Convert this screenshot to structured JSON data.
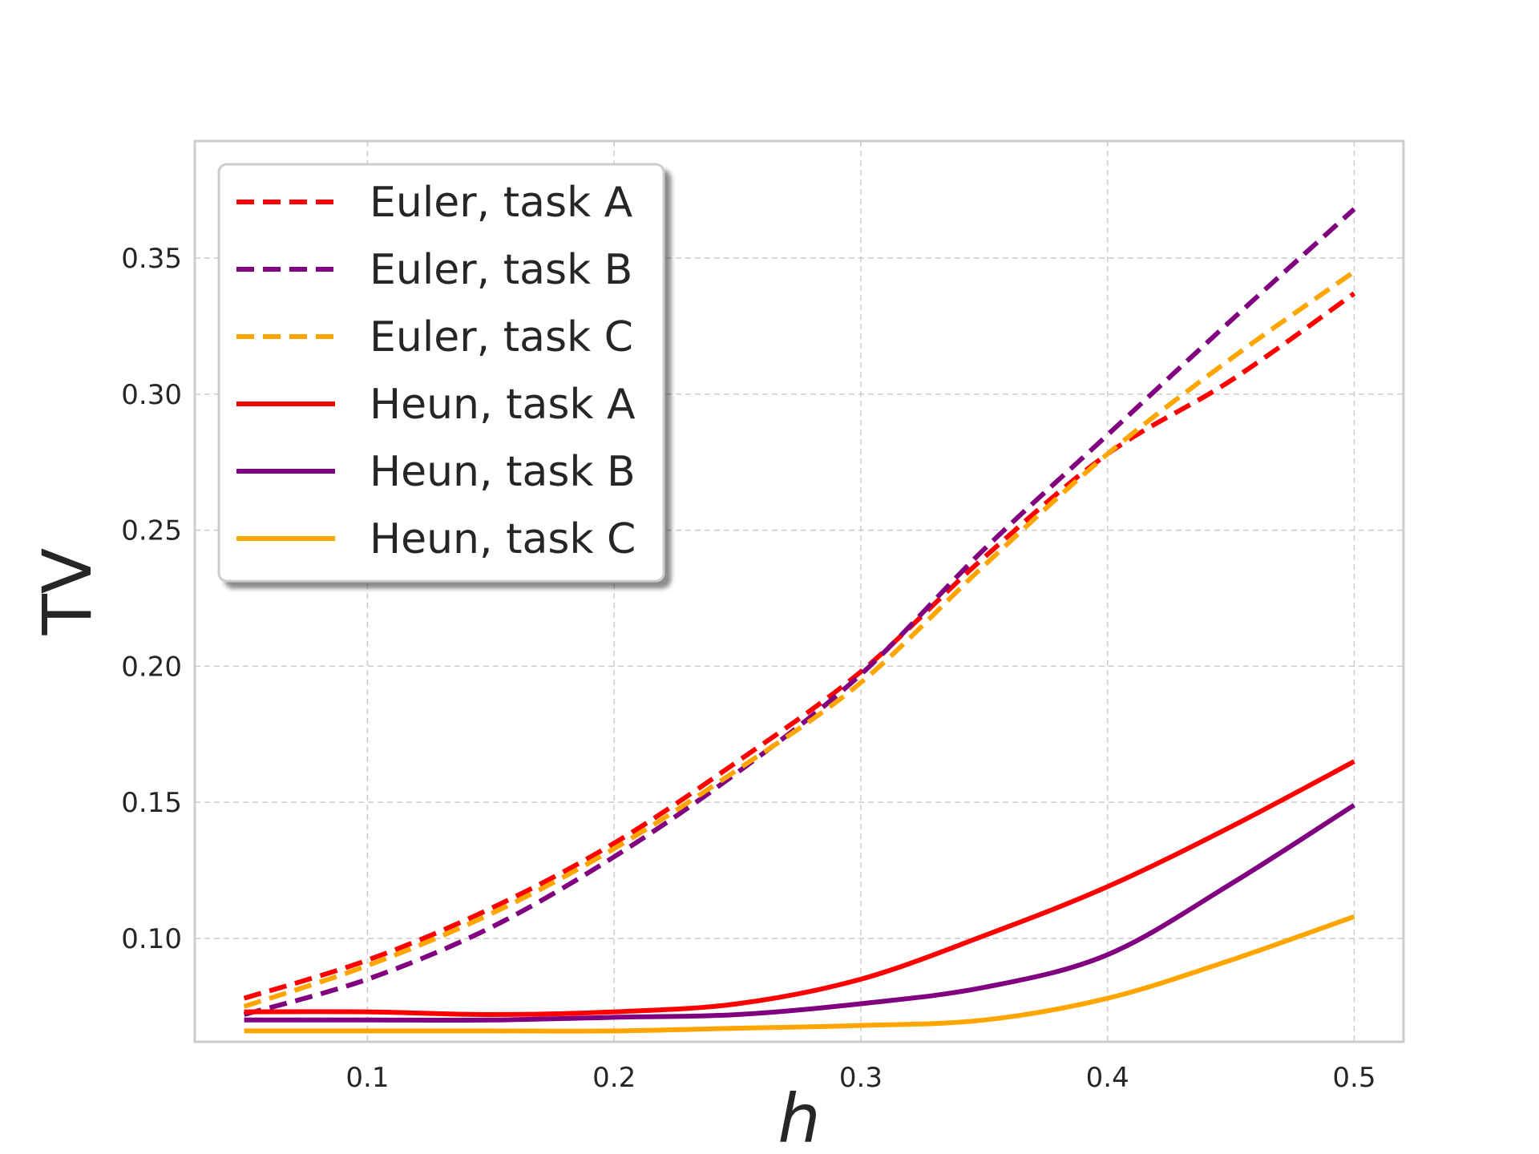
{
  "chart_data": {
    "type": "line",
    "xlabel": "h",
    "ylabel": "TV",
    "xlim": [
      0.03,
      0.52
    ],
    "ylim": [
      0.062,
      0.393
    ],
    "xticks": [
      0.1,
      0.2,
      0.3,
      0.4,
      0.5
    ],
    "xtick_labels": [
      "0.1",
      "0.2",
      "0.3",
      "0.4",
      "0.5"
    ],
    "yticks": [
      0.1,
      0.15,
      0.2,
      0.25,
      0.3,
      0.35
    ],
    "ytick_labels": [
      "0.10",
      "0.15",
      "0.20",
      "0.25",
      "0.30",
      "0.35"
    ],
    "grid": true,
    "legend_position": "top-left",
    "x": [
      0.05,
      0.1,
      0.15,
      0.2,
      0.25,
      0.3,
      0.35,
      0.4,
      0.45,
      0.5
    ],
    "series": [
      {
        "name": "Euler, task A",
        "color": "#ff0000",
        "dash": true,
        "values": [
          0.078,
          0.092,
          0.111,
          0.135,
          0.165,
          0.198,
          0.24,
          0.278,
          0.305,
          0.337
        ]
      },
      {
        "name": "Euler, task B",
        "color": "#800080",
        "dash": true,
        "values": [
          0.072,
          0.085,
          0.104,
          0.13,
          0.161,
          0.197,
          0.243,
          0.285,
          0.327,
          0.368
        ]
      },
      {
        "name": "Euler, task C",
        "color": "#ffa500",
        "dash": true,
        "values": [
          0.075,
          0.09,
          0.109,
          0.133,
          0.162,
          0.194,
          0.237,
          0.278,
          0.313,
          0.345
        ]
      },
      {
        "name": "Heun, task A",
        "color": "#ff0000",
        "dash": false,
        "values": [
          0.073,
          0.073,
          0.072,
          0.073,
          0.076,
          0.085,
          0.101,
          0.119,
          0.141,
          0.165
        ]
      },
      {
        "name": "Heun, task B",
        "color": "#800080",
        "dash": false,
        "values": [
          0.07,
          0.07,
          0.07,
          0.071,
          0.072,
          0.076,
          0.082,
          0.094,
          0.12,
          0.149
        ]
      },
      {
        "name": "Heun, task C",
        "color": "#ffa500",
        "dash": false,
        "values": [
          0.066,
          0.066,
          0.066,
          0.066,
          0.067,
          0.068,
          0.07,
          0.078,
          0.092,
          0.108
        ]
      }
    ]
  }
}
